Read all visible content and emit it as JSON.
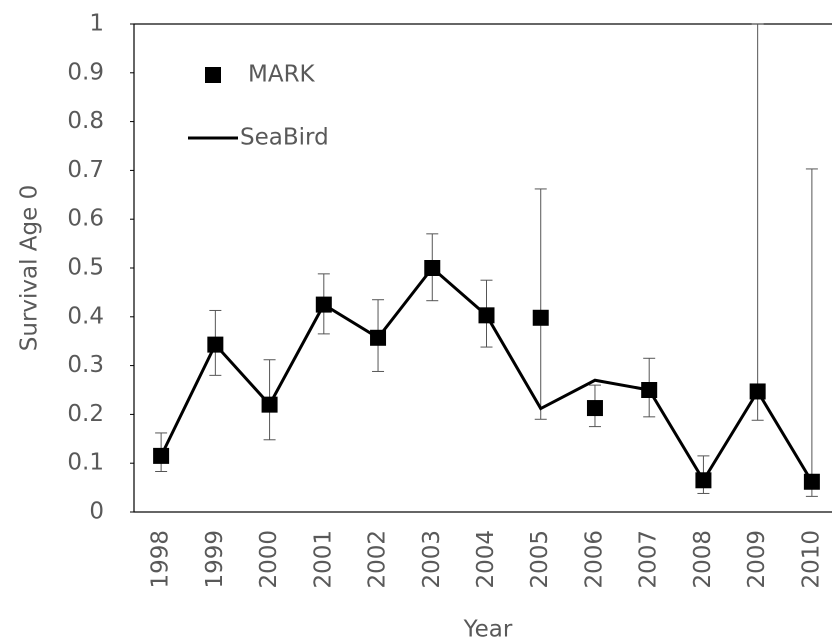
{
  "chart_data": {
    "type": "line",
    "y_label": "Survival Age 0",
    "x_label": "Year",
    "categories": [
      "1998",
      "1999",
      "2000",
      "2001",
      "2002",
      "2003",
      "2004",
      "2005",
      "2006",
      "2007",
      "2008",
      "2009",
      "2010"
    ],
    "series": [
      {
        "name": "MARK",
        "color": "#000000",
        "style": "marker",
        "values": [
          0.115,
          0.343,
          0.22,
          0.425,
          0.357,
          0.5,
          0.403,
          0.398,
          0.213,
          0.25,
          0.065,
          0.247,
          0.062
        ],
        "lower": [
          0.083,
          0.28,
          0.148,
          0.365,
          0.288,
          0.433,
          0.338,
          0.19,
          0.175,
          0.195,
          0.038,
          0.188,
          0.032
        ],
        "upper": [
          0.162,
          0.413,
          0.312,
          0.488,
          0.435,
          0.57,
          0.475,
          0.662,
          0.26,
          0.315,
          0.115,
          1.0,
          0.703
        ]
      },
      {
        "name": "SeaBird",
        "color": "#000000",
        "style": "line",
        "values": [
          0.115,
          0.343,
          0.22,
          0.425,
          0.357,
          0.5,
          0.403,
          0.212,
          0.27,
          0.25,
          0.065,
          0.247,
          0.062
        ]
      }
    ],
    "ylim": [
      0,
      1
    ],
    "yticks": [
      0,
      0.1,
      0.2,
      0.3,
      0.4,
      0.5,
      0.6,
      0.7,
      0.8,
      0.9,
      1
    ],
    "legend": "upper left"
  }
}
